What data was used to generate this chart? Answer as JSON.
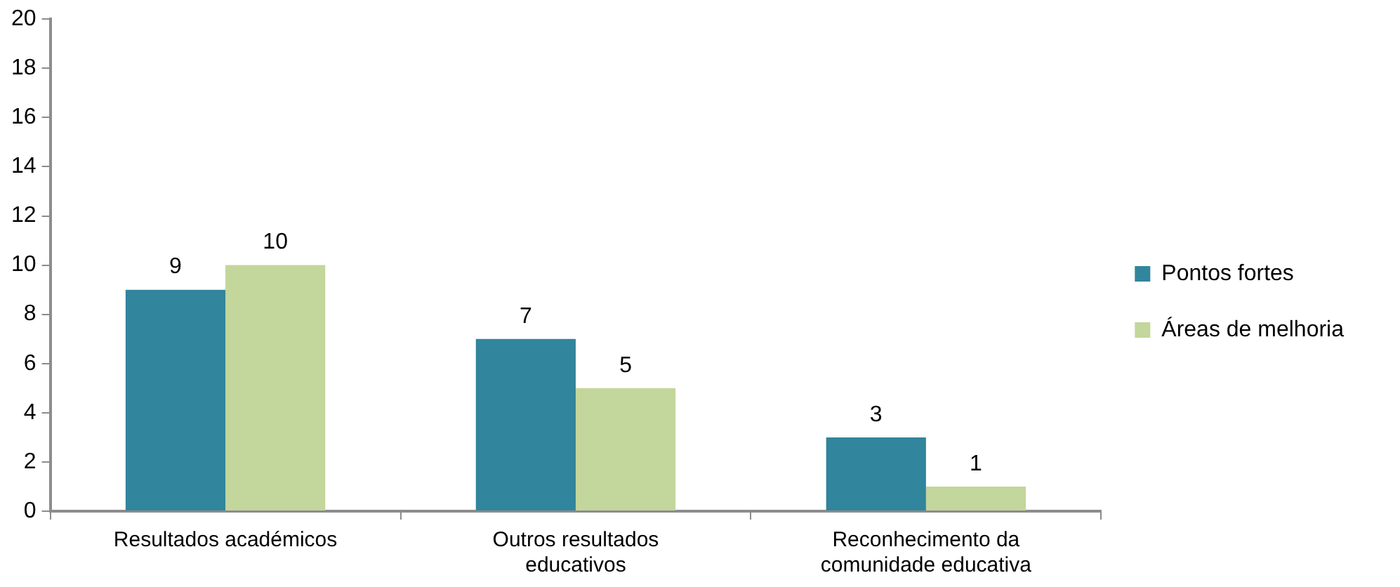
{
  "chart_data": {
    "type": "bar",
    "categories": [
      "Resultados académicos",
      "Outros resultados educativos",
      "Reconhecimento da comunidade educativa"
    ],
    "series": [
      {
        "name": "Pontos fortes",
        "color": "#31859c",
        "values": [
          9,
          7,
          3
        ]
      },
      {
        "name": "Áreas de melhoria",
        "color": "#c3d69b",
        "values": [
          10,
          5,
          1
        ]
      }
    ],
    "ylim": [
      0,
      20
    ],
    "yticks": [
      0,
      2,
      4,
      6,
      8,
      10,
      12,
      14,
      16,
      18,
      20
    ],
    "grid": false,
    "legend": "right",
    "data_labels": true
  }
}
